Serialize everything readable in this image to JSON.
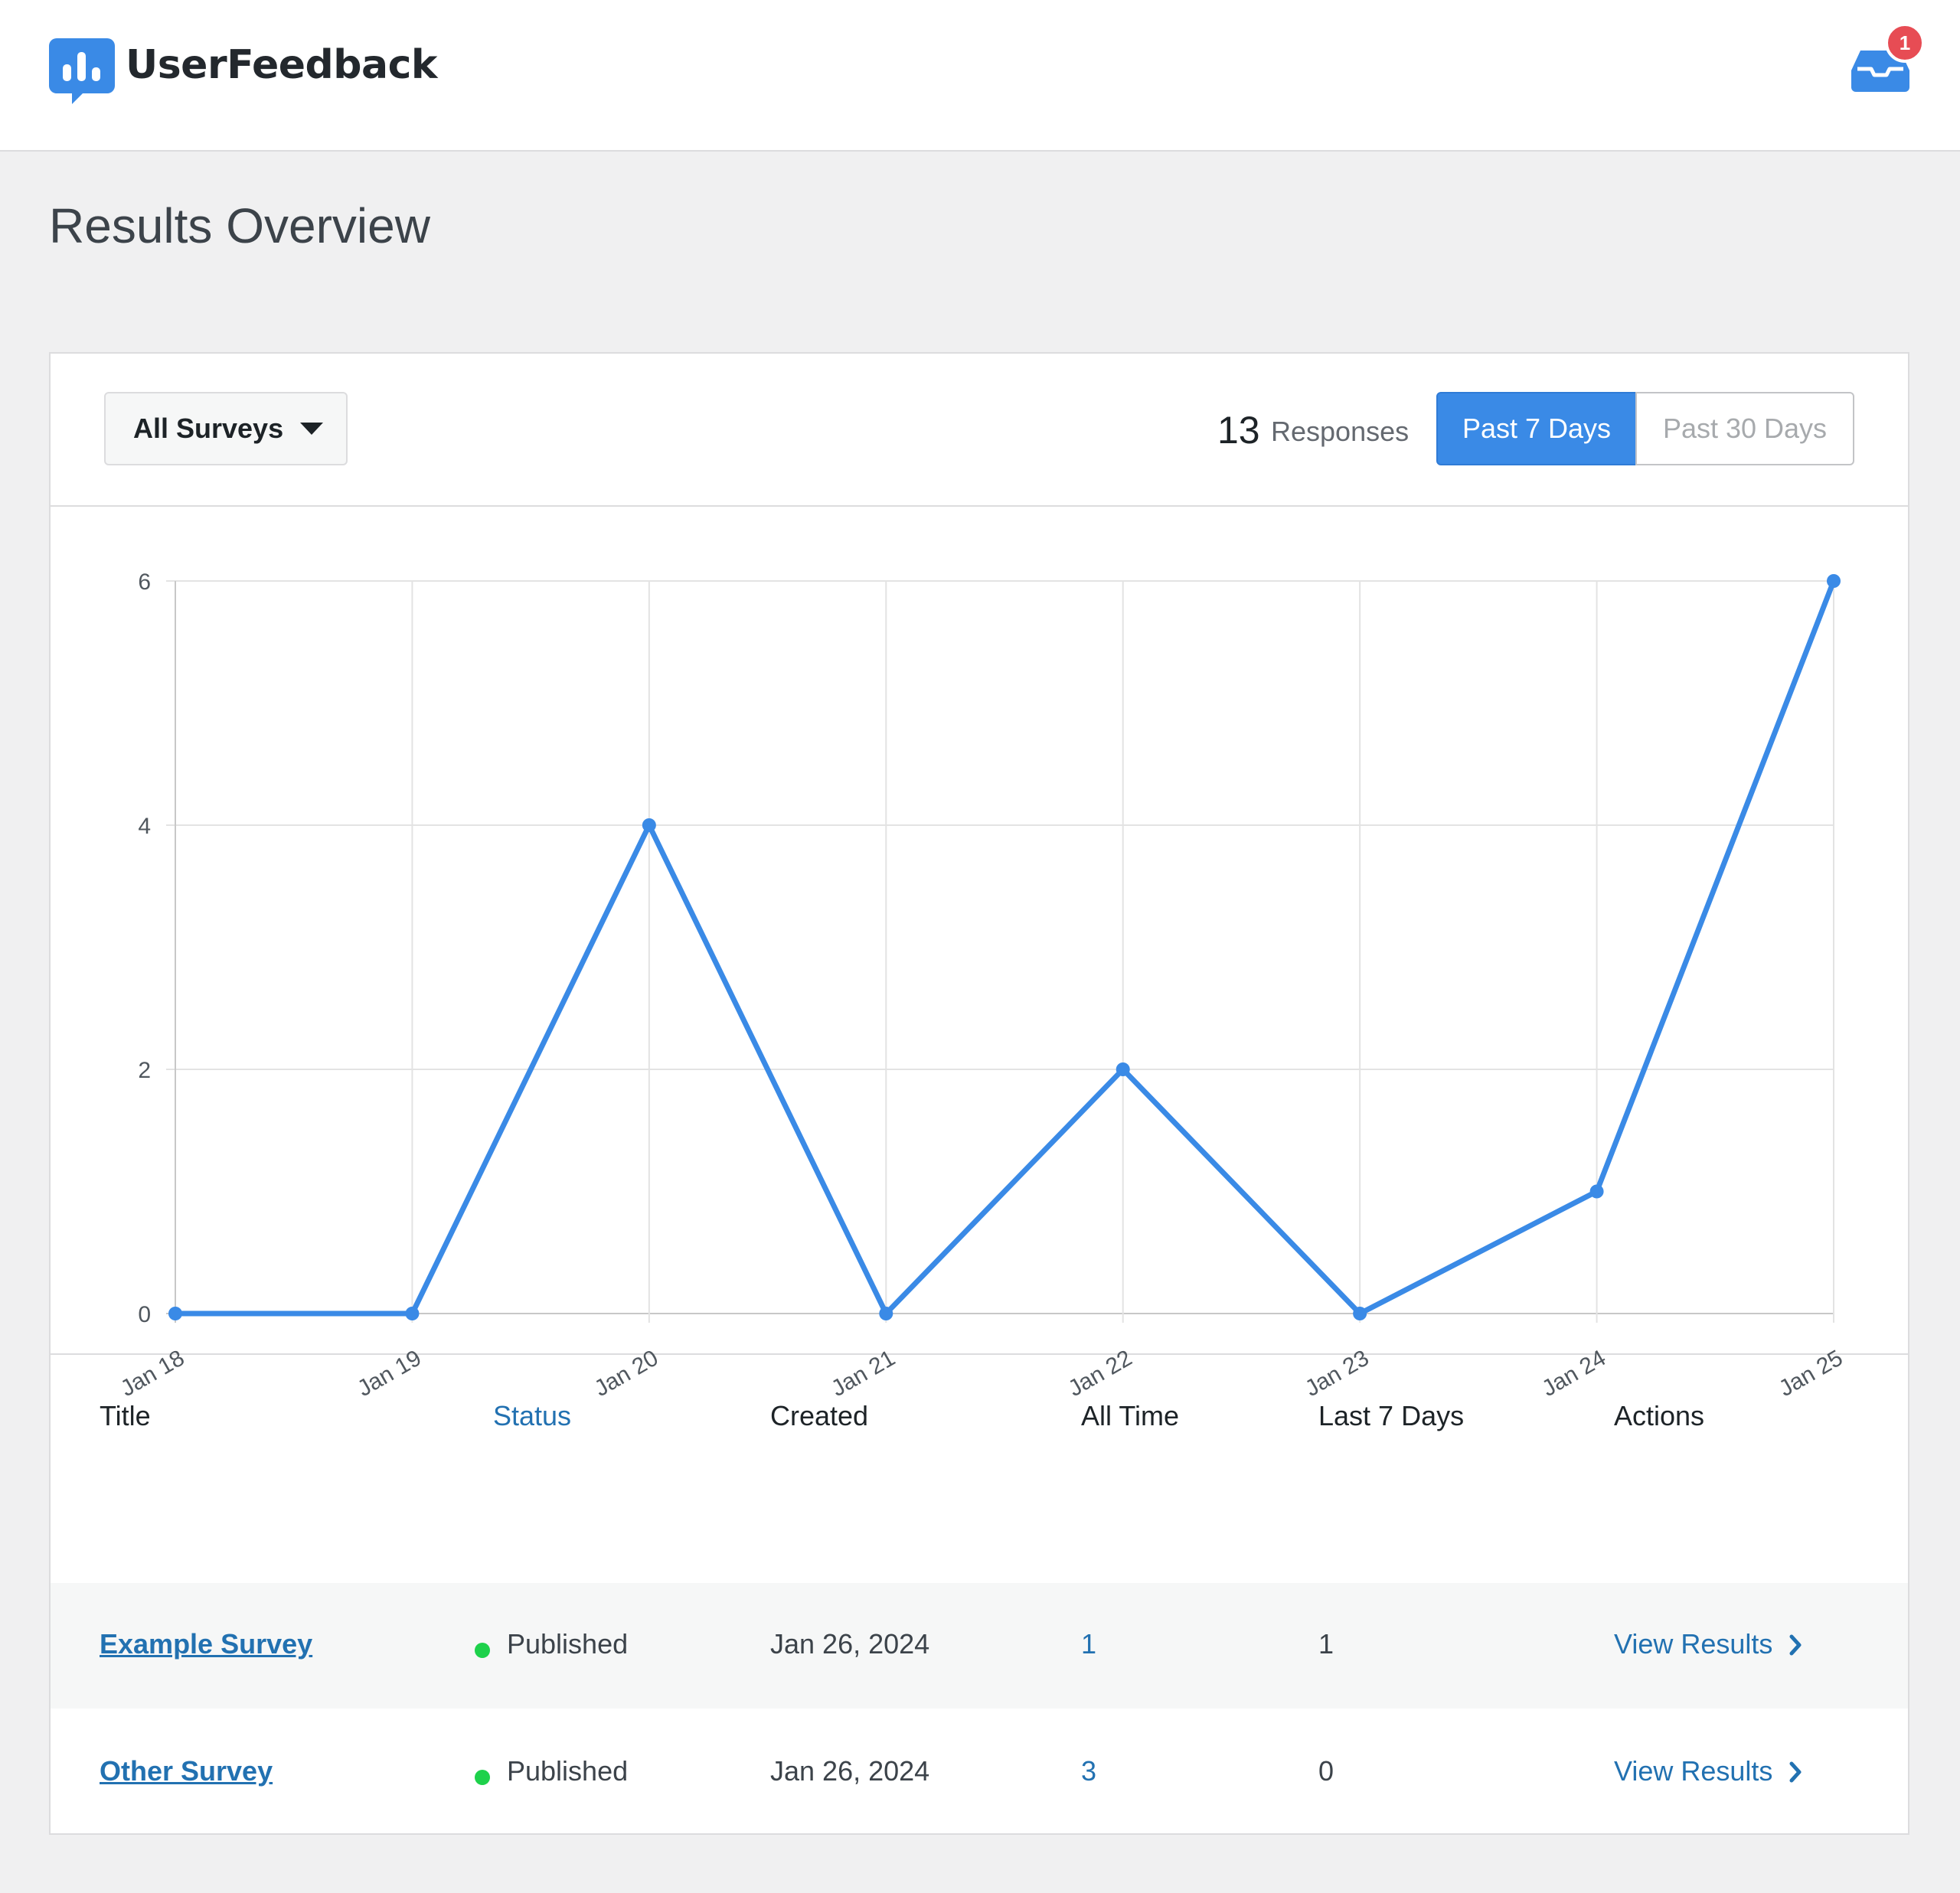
{
  "app": {
    "brand": "UserFeedback",
    "notification_count": "1",
    "accent_color": "#3a8ae6"
  },
  "page": {
    "title": "Results Overview"
  },
  "filters": {
    "survey_select": {
      "value": "All Surveys",
      "icon": "caret-down-icon"
    },
    "responses_count": "13",
    "responses_label": "Responses",
    "ranges": [
      {
        "label": "Past 7 Days",
        "active": true
      },
      {
        "label": "Past 30 Days",
        "active": false
      }
    ]
  },
  "chart_data": {
    "type": "line",
    "categories": [
      "Jan 18",
      "Jan 19",
      "Jan 20",
      "Jan 21",
      "Jan 22",
      "Jan 23",
      "Jan 24",
      "Jan 25"
    ],
    "series": [
      {
        "values": [
          0,
          0,
          4,
          0,
          2,
          0,
          1,
          6
        ],
        "color": "#3a8ae6"
      }
    ],
    "y_ticks": [
      "0",
      "2",
      "4",
      "6"
    ],
    "ylim": [
      0,
      6
    ],
    "grid": true,
    "title": "",
    "xlabel": "",
    "ylabel": ""
  },
  "table": {
    "headers": {
      "title": "Title",
      "status": "Status",
      "created": "Created",
      "all_time": "All Time",
      "last_7_days": "Last 7 Days",
      "actions": "Actions"
    },
    "rows": [
      {
        "title": "Example Survey",
        "status": "Published",
        "created": "Jan 26, 2024",
        "all_time": "1",
        "last_7_days": "1",
        "action": "View Results"
      },
      {
        "title": "Other Survey",
        "status": "Published",
        "created": "Jan 26, 2024",
        "all_time": "3",
        "last_7_days": "0",
        "action": "View Results"
      }
    ]
  }
}
